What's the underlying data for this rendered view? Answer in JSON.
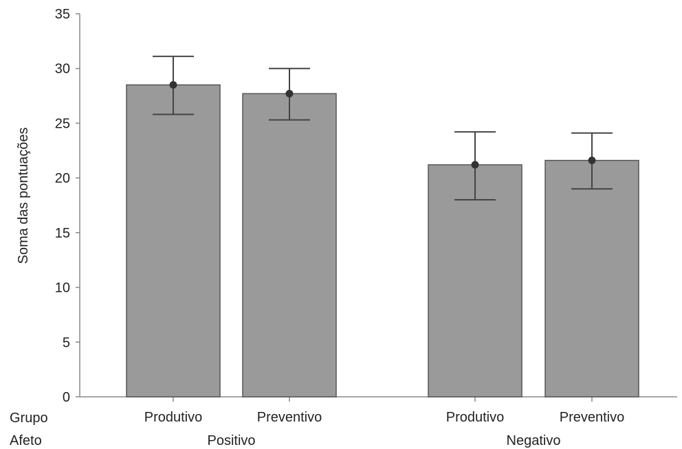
{
  "chart_data": {
    "type": "bar",
    "title": "",
    "xlabel": "",
    "ylabel": "Soma das pontuações",
    "ylim": [
      0,
      35
    ],
    "yticks": [
      0,
      5,
      10,
      15,
      20,
      25,
      30,
      35
    ],
    "grid": false,
    "row_labels": {
      "grupo": "Grupo",
      "afeto": "Afeto"
    },
    "groups": [
      {
        "label": "Positivo",
        "bars": [
          {
            "category": "Produtivo",
            "value": 28.5,
            "error_low": 25.8,
            "error_high": 31.1
          },
          {
            "category": "Preventivo",
            "value": 27.7,
            "error_low": 25.3,
            "error_high": 30.0
          }
        ]
      },
      {
        "label": "Negativo",
        "bars": [
          {
            "category": "Produtivo",
            "value": 21.2,
            "error_low": 18.0,
            "error_high": 24.2
          },
          {
            "category": "Preventivo",
            "value": 21.6,
            "error_low": 19.0,
            "error_high": 24.1
          }
        ]
      }
    ],
    "colors": {
      "bar_fill": "#9a9a9a",
      "bar_stroke": "#555555",
      "error_bar": "#444444",
      "point": "#333333",
      "axis": "#888888"
    }
  }
}
